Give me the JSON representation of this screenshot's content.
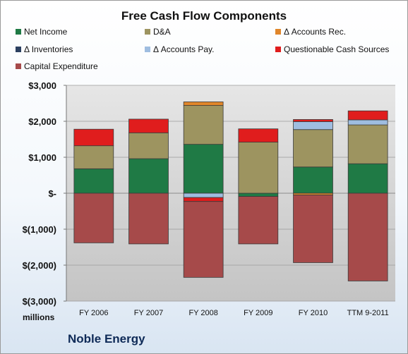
{
  "chart_data": {
    "type": "bar",
    "stacked": true,
    "title": "Free Cash Flow Components",
    "categories": [
      "FY 2006",
      "FY 2007",
      "FY 2008",
      "FY 2009",
      "FY 2010",
      "TTM 9-2011"
    ],
    "yticks": [
      "$3,000",
      "$2,000",
      "$1,000",
      "$-",
      "$(1,000)",
      "$(2,000)",
      "$(3,000)"
    ],
    "ylim": [
      -3000,
      3000
    ],
    "grid": true,
    "legend_position": "top",
    "series": [
      {
        "name": "Net Income",
        "color": "#1f7a45",
        "values": [
          680,
          960,
          1360,
          -90,
          730,
          820
        ]
      },
      {
        "name": "D&A",
        "color": "#9d9460",
        "values": [
          640,
          720,
          1080,
          1420,
          1040,
          1080
        ]
      },
      {
        "name": "Δ Accounts Rec.",
        "color": "#e0862a",
        "values": [
          0,
          0,
          100,
          0,
          -50,
          0
        ]
      },
      {
        "name": "Δ Inventories",
        "color": "#2c4060",
        "values": [
          0,
          0,
          0,
          0,
          0,
          0
        ]
      },
      {
        "name": "Δ Accounts Pay.",
        "color": "#9fbde0",
        "values": [
          0,
          0,
          -120,
          0,
          220,
          140
        ]
      },
      {
        "name": "Questionable Cash Sources",
        "color": "#e01d1d",
        "values": [
          460,
          380,
          -110,
          370,
          60,
          250
        ]
      },
      {
        "name": "Capital Expenditure",
        "color": "#a64a4a",
        "values": [
          -1380,
          -1410,
          -2110,
          -1320,
          -1880,
          -2440
        ]
      }
    ]
  },
  "units_label": "millions",
  "company_name": "Noble Energy"
}
